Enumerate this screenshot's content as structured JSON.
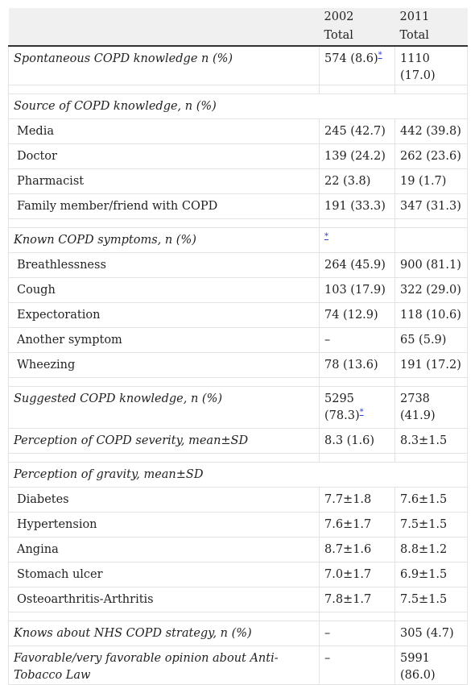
{
  "header": {
    "col2_year": "2002",
    "col2_sub": "Total",
    "col3_year": "2011",
    "col3_sub": "Total"
  },
  "footnote_mark": "*",
  "rows": {
    "spont": {
      "label": "Spontaneous COPD knowledge n (%)",
      "v2002": "574 (8.6)",
      "v2011": "1110 (17.0)"
    },
    "source": {
      "label": "Source of COPD knowledge, n (%)"
    },
    "media": {
      "label": "Media",
      "v2002": "245 (42.7)",
      "v2011": "442 (39.8)"
    },
    "doctor": {
      "label": "Doctor",
      "v2002": "139 (24.2)",
      "v2011": "262 (23.6)"
    },
    "pharm": {
      "label": "Pharmacist",
      "v2002": "22 (3.8)",
      "v2011": "19 (1.7)"
    },
    "family": {
      "label": "Family member/friend with COPD",
      "v2002": "191 (33.3)",
      "v2011": "347 (31.3)"
    },
    "symptoms": {
      "label": "Known COPD symptoms, n (%)"
    },
    "breath": {
      "label": "Breathlessness",
      "v2002": "264 (45.9)",
      "v2011": "900 (81.1)"
    },
    "cough": {
      "label": "Cough",
      "v2002": "103 (17.9)",
      "v2011": "322 (29.0)"
    },
    "expect": {
      "label": "Expectoration",
      "v2002": "74 (12.9)",
      "v2011": "118 (10.6)"
    },
    "another": {
      "label": "Another symptom",
      "v2002": "–",
      "v2011": "65 (5.9)"
    },
    "wheeze": {
      "label": "Wheezing",
      "v2002": "78 (13.6)",
      "v2011": "191 (17.2)"
    },
    "suggested": {
      "label": "Suggested COPD knowledge, n (%)",
      "v2002": "5295 (78.3)",
      "v2011": "2738 (41.9)"
    },
    "severity": {
      "label": "Perception of COPD severity, mean±SD",
      "v2002": "8.3 (1.6)",
      "v2011": "8.3±1.5"
    },
    "gravity": {
      "label": "Perception of gravity, mean±SD"
    },
    "diabetes": {
      "label": "Diabetes",
      "v2002": "7.7±1.8",
      "v2011": "7.6±1.5"
    },
    "hyper": {
      "label": "Hypertension",
      "v2002": "7.6±1.7",
      "v2011": "7.5±1.5"
    },
    "angina": {
      "label": "Angina",
      "v2002": "8.7±1.6",
      "v2011": "8.8±1.2"
    },
    "ulcer": {
      "label": "Stomach ulcer",
      "v2002": "7.0±1.7",
      "v2011": "6.9±1.5"
    },
    "osteo": {
      "label": "Osteoarthritis-Arthritis",
      "v2002": "7.8±1.7",
      "v2011": "7.5±1.5"
    },
    "nhs": {
      "label": "Knows about NHS COPD strategy, n (%)",
      "v2002": "–",
      "v2011": "305 (4.7)"
    },
    "tobacco": {
      "label": "Favorable/very favorable opinion about Anti-Tobacco Law",
      "v2002": "–",
      "v2011": "5991 (86.0)"
    }
  }
}
